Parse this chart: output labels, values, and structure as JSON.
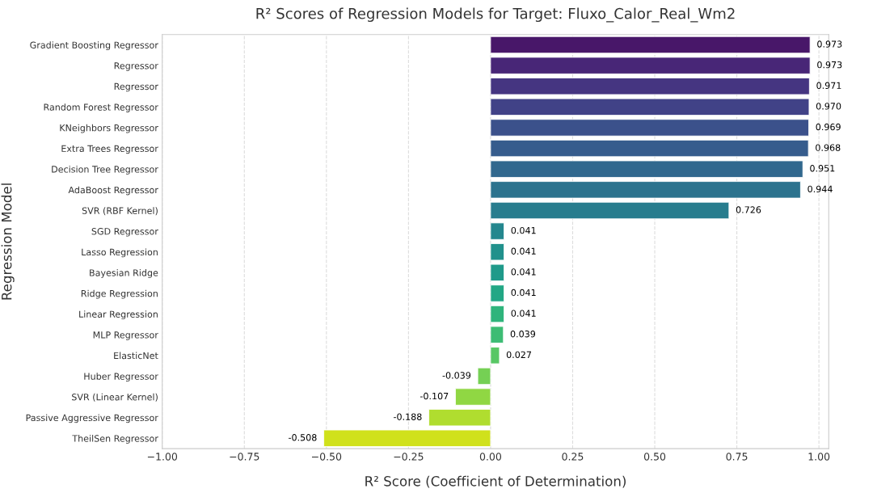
{
  "chart_data": {
    "type": "bar",
    "orientation": "horizontal",
    "title": "R² Scores of Regression Models for Target: Fluxo_Calor_Real_Wm2",
    "xlabel": "R² Score (Coefficient of Determination)",
    "ylabel": "Regression Model",
    "categories": [
      "Gradient Boosting Regressor",
      "Regressor",
      "Regressor",
      "Random Forest Regressor",
      "KNeighbors Regressor",
      "Extra Trees Regressor",
      "Decision Tree Regressor",
      "AdaBoost Regressor",
      "SVR (RBF Kernel)",
      "SGD Regressor",
      "Lasso Regression",
      "Bayesian Ridge",
      "Ridge Regression",
      "Linear Regression",
      "MLP Regressor",
      "ElasticNet",
      "Huber Regressor",
      "SVR (Linear Kernel)",
      "Passive Aggressive Regressor",
      "TheilSen Regressor"
    ],
    "values": [
      0.973,
      0.973,
      0.971,
      0.97,
      0.969,
      0.968,
      0.951,
      0.944,
      0.726,
      0.041,
      0.041,
      0.041,
      0.041,
      0.041,
      0.039,
      0.027,
      -0.039,
      -0.107,
      -0.188,
      -0.508
    ],
    "value_labels": [
      "0.973",
      "0.973",
      "0.971",
      "0.970",
      "0.969",
      "0.968",
      "0.951",
      "0.944",
      "0.726",
      "0.041",
      "0.041",
      "0.041",
      "0.041",
      "0.041",
      "0.039",
      "0.027",
      "-0.039",
      "-0.107",
      "-0.188",
      "-0.508"
    ],
    "colors": [
      "#481769",
      "#482677",
      "#453581",
      "#414287",
      "#3b518b",
      "#365c8d",
      "#31688e",
      "#2c738e",
      "#287d8e",
      "#24878e",
      "#21918c",
      "#1f9a8a",
      "#22a785",
      "#2fb47c",
      "#3dbc74",
      "#58c765",
      "#75d054",
      "#90d743",
      "#b0dd2f",
      "#d0e11c"
    ],
    "xlim": [
      -1.0,
      1.03
    ],
    "xticks": [
      {
        "value": -1.0,
        "label": "−1.00"
      },
      {
        "value": -0.75,
        "label": "−0.75"
      },
      {
        "value": -0.5,
        "label": "−0.50"
      },
      {
        "value": -0.25,
        "label": "−0.25"
      },
      {
        "value": 0.0,
        "label": "0.00"
      },
      {
        "value": 0.25,
        "label": "0.25"
      },
      {
        "value": 0.5,
        "label": "0.50"
      },
      {
        "value": 0.75,
        "label": "0.75"
      },
      {
        "value": 1.0,
        "label": "1.00"
      }
    ],
    "grid": "x",
    "legend": false
  }
}
